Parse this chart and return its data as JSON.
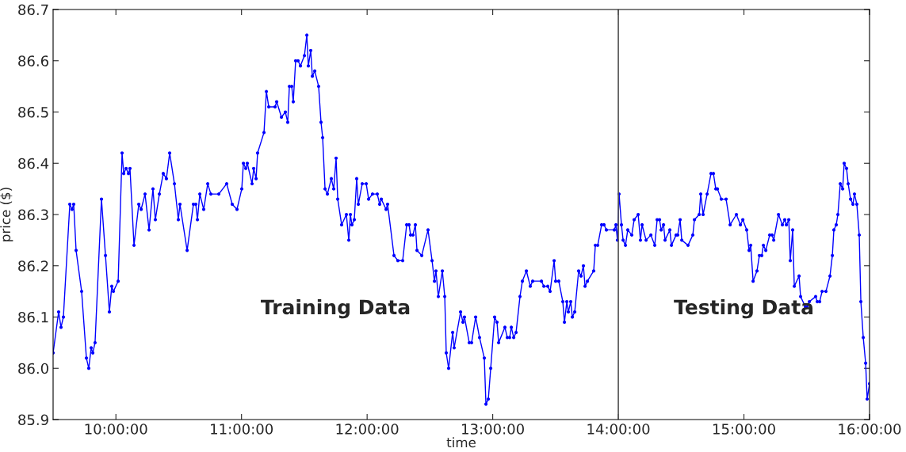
{
  "chart_data": {
    "type": "line",
    "xlabel": "time",
    "ylabel": "price ($)",
    "xlim": [
      9.5,
      16
    ],
    "xticks": [
      {
        "value": 10,
        "label": "10:00:00"
      },
      {
        "value": 11,
        "label": "11:00:00"
      },
      {
        "value": 12,
        "label": "12:00:00"
      },
      {
        "value": 13,
        "label": "13:00:00"
      },
      {
        "value": 14,
        "label": "14:00:00"
      },
      {
        "value": 15,
        "label": "15:00:00"
      },
      {
        "value": 16,
        "label": "16:00:00"
      }
    ],
    "ylim": [
      85.9,
      86.7
    ],
    "yticks": [
      85.9,
      {
        "value": 86.0,
        "label": "86.0"
      },
      86.1,
      86.2,
      86.3,
      86.4,
      86.5,
      86.6,
      86.7
    ],
    "grid": false,
    "marker": "circle",
    "line_style": "solid",
    "ref_lines": [
      {
        "axis": "x",
        "value": 14,
        "color": "#555555"
      }
    ],
    "annotations": [
      "Training Data",
      "Testing Data"
    ],
    "series": [
      {
        "color": "#0000ff",
        "x": [
          9.5,
          9.544,
          9.563,
          9.582,
          9.633,
          9.651,
          9.664,
          9.683,
          9.727,
          9.765,
          9.784,
          9.803,
          9.816,
          9.834,
          9.885,
          9.917,
          9.948,
          9.967,
          9.98,
          10.018,
          10.049,
          10.062,
          10.081,
          10.1,
          10.112,
          10.144,
          10.182,
          10.201,
          10.232,
          10.264,
          10.295,
          10.314,
          10.346,
          10.377,
          10.402,
          10.428,
          10.466,
          10.497,
          10.51,
          10.567,
          10.617,
          10.636,
          10.649,
          10.668,
          10.699,
          10.731,
          10.756,
          10.819,
          10.882,
          10.926,
          10.964,
          11.002,
          11.015,
          11.034,
          11.046,
          11.084,
          11.097,
          11.116,
          11.128,
          11.179,
          11.198,
          11.217,
          11.267,
          11.28,
          11.318,
          11.349,
          11.368,
          11.381,
          11.4,
          11.412,
          11.431,
          11.45,
          11.469,
          11.501,
          11.52,
          11.532,
          11.551,
          11.564,
          11.583,
          11.614,
          11.633,
          11.646,
          11.665,
          11.684,
          11.715,
          11.734,
          11.753,
          11.766,
          11.797,
          11.835,
          11.854,
          11.867,
          11.879,
          11.898,
          11.917,
          11.93,
          11.961,
          11.993,
          12.012,
          12.043,
          12.081,
          12.1,
          12.113,
          12.151,
          12.163,
          12.214,
          12.245,
          12.283,
          12.315,
          12.334,
          12.346,
          12.365,
          12.384,
          12.397,
          12.435,
          12.485,
          12.517,
          12.536,
          12.548,
          12.567,
          12.599,
          12.618,
          12.63,
          12.649,
          12.681,
          12.693,
          12.744,
          12.763,
          12.775,
          12.813,
          12.832,
          12.864,
          12.895,
          12.933,
          12.946,
          12.965,
          12.984,
          13.015,
          13.034,
          13.047,
          13.097,
          13.116,
          13.135,
          13.148,
          13.167,
          13.186,
          13.217,
          13.236,
          13.268,
          13.299,
          13.318,
          13.388,
          13.407,
          13.438,
          13.457,
          13.489,
          13.501,
          13.526,
          13.558,
          13.571,
          13.59,
          13.602,
          13.621,
          13.634,
          13.653,
          13.684,
          13.703,
          13.722,
          13.735,
          13.754,
          13.804,
          13.817,
          13.836,
          13.867,
          13.886,
          13.905,
          13.968,
          13.981,
          13.993,
          14.006,
          14.025,
          14.038,
          14.057,
          14.075,
          14.107,
          14.126,
          14.158,
          14.176,
          14.189,
          14.221,
          14.259,
          14.29,
          14.309,
          14.328,
          14.341,
          14.36,
          14.372,
          14.41,
          14.423,
          14.46,
          14.473,
          14.492,
          14.505,
          14.555,
          14.593,
          14.606,
          14.644,
          14.656,
          14.675,
          14.707,
          14.738,
          14.757,
          14.776,
          14.789,
          14.82,
          14.858,
          14.89,
          14.94,
          14.972,
          14.991,
          15.022,
          15.041,
          15.054,
          15.073,
          15.104,
          15.123,
          15.142,
          15.155,
          15.174,
          15.205,
          15.224,
          15.237,
          15.275,
          15.306,
          15.325,
          15.338,
          15.357,
          15.369,
          15.388,
          15.401,
          15.439,
          15.451,
          15.489,
          15.502,
          15.521,
          15.571,
          15.584,
          15.603,
          15.622,
          15.653,
          15.685,
          15.704,
          15.716,
          15.735,
          15.748,
          15.767,
          15.786,
          15.798,
          15.817,
          15.83,
          15.849,
          15.868,
          15.88,
          15.899,
          15.918,
          15.931,
          15.95,
          15.969,
          15.981,
          16.0
        ],
        "values": [
          86.03,
          86.11,
          86.08,
          86.1,
          86.32,
          86.31,
          86.32,
          86.23,
          86.15,
          86.02,
          86.0,
          86.04,
          86.03,
          86.05,
          86.33,
          86.22,
          86.11,
          86.16,
          86.15,
          86.17,
          86.42,
          86.38,
          86.39,
          86.38,
          86.39,
          86.24,
          86.32,
          86.31,
          86.34,
          86.27,
          86.35,
          86.29,
          86.34,
          86.38,
          86.37,
          86.42,
          86.36,
          86.29,
          86.32,
          86.23,
          86.32,
          86.32,
          86.29,
          86.34,
          86.31,
          86.36,
          86.34,
          86.34,
          86.36,
          86.32,
          86.31,
          86.35,
          86.4,
          86.39,
          86.4,
          86.36,
          86.39,
          86.37,
          86.42,
          86.46,
          86.54,
          86.51,
          86.51,
          86.52,
          86.49,
          86.5,
          86.48,
          86.55,
          86.55,
          86.52,
          86.6,
          86.6,
          86.59,
          86.61,
          86.65,
          86.59,
          86.62,
          86.57,
          86.58,
          86.55,
          86.48,
          86.45,
          86.35,
          86.34,
          86.37,
          86.35,
          86.41,
          86.33,
          86.28,
          86.3,
          86.25,
          86.3,
          86.28,
          86.29,
          86.37,
          86.32,
          86.36,
          86.36,
          86.33,
          86.34,
          86.34,
          86.32,
          86.33,
          86.31,
          86.32,
          86.22,
          86.21,
          86.21,
          86.28,
          86.28,
          86.26,
          86.26,
          86.28,
          86.23,
          86.22,
          86.27,
          86.21,
          86.17,
          86.19,
          86.14,
          86.19,
          86.14,
          86.03,
          86.0,
          86.07,
          86.04,
          86.11,
          86.09,
          86.1,
          86.05,
          86.05,
          86.1,
          86.06,
          86.02,
          85.93,
          85.94,
          86.0,
          86.1,
          86.09,
          86.05,
          86.08,
          86.06,
          86.06,
          86.08,
          86.06,
          86.07,
          86.14,
          86.17,
          86.19,
          86.16,
          86.17,
          86.17,
          86.16,
          86.16,
          86.15,
          86.21,
          86.17,
          86.17,
          86.13,
          86.09,
          86.13,
          86.11,
          86.13,
          86.1,
          86.11,
          86.19,
          86.18,
          86.2,
          86.16,
          86.17,
          86.19,
          86.24,
          86.24,
          86.28,
          86.28,
          86.27,
          86.27,
          86.28,
          86.25,
          86.34,
          86.28,
          86.25,
          86.24,
          86.27,
          86.26,
          86.29,
          86.3,
          86.25,
          86.28,
          86.25,
          86.26,
          86.24,
          86.29,
          86.29,
          86.27,
          86.28,
          86.25,
          86.27,
          86.24,
          86.26,
          86.26,
          86.29,
          86.25,
          86.24,
          86.26,
          86.29,
          86.3,
          86.34,
          86.3,
          86.34,
          86.38,
          86.38,
          86.35,
          86.35,
          86.33,
          86.33,
          86.28,
          86.3,
          86.28,
          86.29,
          86.27,
          86.23,
          86.24,
          86.17,
          86.19,
          86.22,
          86.22,
          86.24,
          86.23,
          86.26,
          86.26,
          86.25,
          86.3,
          86.28,
          86.29,
          86.28,
          86.29,
          86.21,
          86.27,
          86.16,
          86.18,
          86.14,
          86.12,
          86.12,
          86.13,
          86.14,
          86.13,
          86.13,
          86.15,
          86.15,
          86.18,
          86.22,
          86.27,
          86.28,
          86.3,
          86.36,
          86.35,
          86.4,
          86.39,
          86.36,
          86.33,
          86.32,
          86.34,
          86.32,
          86.26,
          86.13,
          86.06,
          86.01,
          85.94,
          85.97
        ]
      }
    ]
  }
}
